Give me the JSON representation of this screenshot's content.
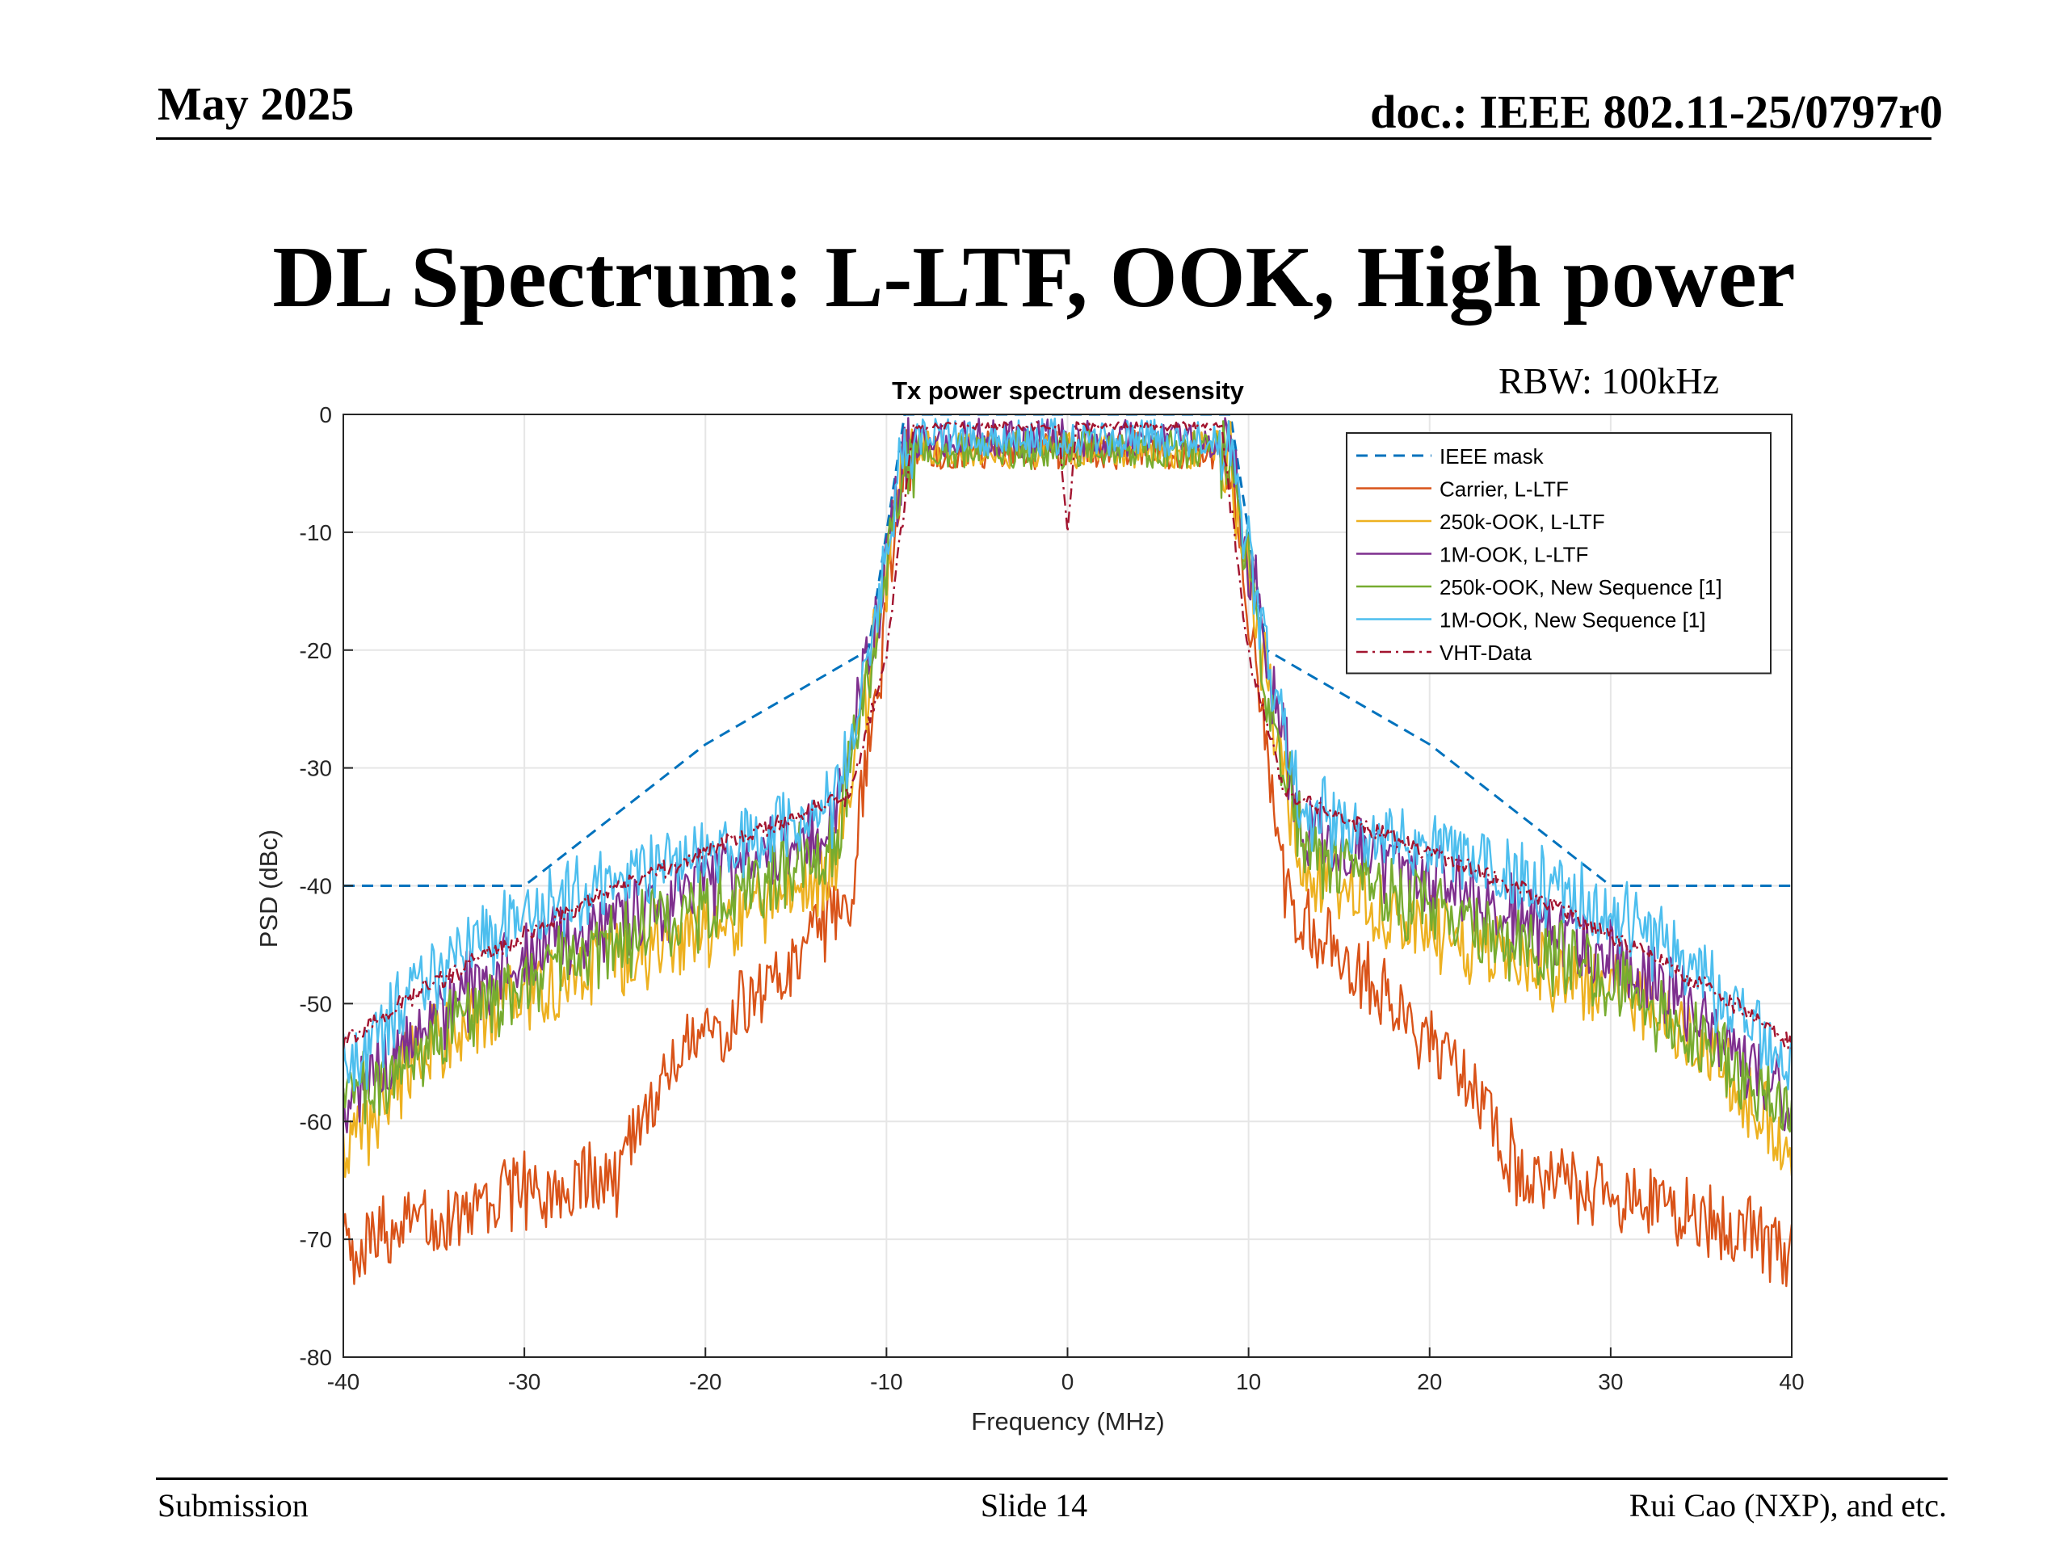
{
  "header": {
    "date": "May 2025",
    "doc": "doc.: IEEE 802.11-25/0797r0"
  },
  "slide_title": "DL Spectrum: L-LTF, OOK, High power",
  "annotation": "RBW: 100kHz",
  "footer": {
    "left": "Submission",
    "center": "Slide 14",
    "right": "Rui Cao (NXP), and etc."
  },
  "chart_data": {
    "type": "line",
    "title": "Tx power spectrum desensity",
    "xlabel": "Frequency (MHz)",
    "ylabel": "PSD (dBc)",
    "xlim": [
      -40,
      40
    ],
    "ylim": [
      -80,
      0
    ],
    "xticks": [
      -40,
      -30,
      -20,
      -10,
      0,
      10,
      20,
      30,
      40
    ],
    "yticks": [
      0,
      -10,
      -20,
      -30,
      -40,
      -50,
      -60,
      -70,
      -80
    ],
    "grid": true,
    "legend_position": "top-right",
    "series": [
      {
        "name": "IEEE mask",
        "color": "#0072BD",
        "style": "dashed",
        "x": [
          -40,
          -30,
          -20,
          -11,
          -9,
          9,
          11,
          20,
          30,
          40
        ],
        "y": [
          -40,
          -40,
          -28,
          -20,
          0,
          0,
          -20,
          -28,
          -40,
          -40
        ]
      },
      {
        "name": "Carrier, L-LTF",
        "color": "#D95319",
        "style": "solid",
        "x": [
          -40,
          -30,
          -25,
          -22,
          -15,
          -12,
          -10.5,
          -9,
          0,
          9,
          10.5,
          12,
          15,
          22,
          25,
          30,
          40
        ],
        "y": [
          -70,
          -65,
          -64,
          -55,
          -45,
          -40,
          -22,
          -3,
          -3,
          -3,
          -22,
          -40,
          -45,
          -55,
          -64,
          -65,
          -70
        ]
      },
      {
        "name": "250k-OOK, L-LTF",
        "color": "#EDB120",
        "style": "solid",
        "x": [
          -40,
          -35,
          -30,
          -20,
          -13,
          -11,
          -9,
          0,
          9,
          11,
          13,
          20,
          30,
          35,
          40
        ],
        "y": [
          -62,
          -52,
          -48,
          -43,
          -38,
          -22,
          -3,
          -3,
          -3,
          -22,
          -38,
          -43,
          -48,
          -52,
          -62
        ]
      },
      {
        "name": "1M-OOK, L-LTF",
        "color": "#7E2F8E",
        "style": "solid",
        "x": [
          -40,
          -35,
          -30,
          -20,
          -13,
          -11,
          -9,
          0,
          9,
          11,
          13,
          20,
          30,
          35,
          40
        ],
        "y": [
          -58,
          -50,
          -45,
          -39,
          -34,
          -20,
          -2,
          -2,
          -2,
          -20,
          -34,
          -39,
          -45,
          -50,
          -58
        ]
      },
      {
        "name": "250k-OOK, New Sequence [1]",
        "color": "#77AC30",
        "style": "solid",
        "x": [
          -40,
          -35,
          -30,
          -20,
          -13,
          -11,
          -9,
          0,
          9,
          11,
          13,
          20,
          30,
          35,
          40
        ],
        "y": [
          -58,
          -52,
          -47,
          -41,
          -36,
          -22,
          -3,
          -3,
          -3,
          -22,
          -36,
          -41,
          -47,
          -52,
          -58
        ]
      },
      {
        "name": "1M-OOK, New Sequence [1]",
        "color": "#4DBEEE",
        "style": "solid",
        "x": [
          -40,
          -35,
          -30,
          -20,
          -13,
          -11,
          -9,
          0,
          9,
          11,
          13,
          20,
          30,
          35,
          40
        ],
        "y": [
          -55,
          -47,
          -41,
          -36,
          -33,
          -20,
          -2,
          -2,
          -2,
          -20,
          -33,
          -36,
          -41,
          -47,
          -55
        ]
      },
      {
        "name": "VHT-Data",
        "color": "#A2142F",
        "style": "dashdot",
        "x": [
          -40,
          -35,
          -30,
          -25,
          -20,
          -15,
          -12,
          -10,
          -8.5,
          -0.5,
          0,
          0.5,
          8.5,
          10,
          12,
          15,
          20,
          25,
          30,
          35,
          40
        ],
        "y": [
          -53,
          -48,
          -44,
          -40,
          -37,
          -34,
          -32,
          -20,
          -1,
          -1,
          -10,
          -1,
          -1,
          -20,
          -32,
          -34,
          -37,
          -40,
          -44,
          -48,
          -53
        ]
      }
    ]
  }
}
